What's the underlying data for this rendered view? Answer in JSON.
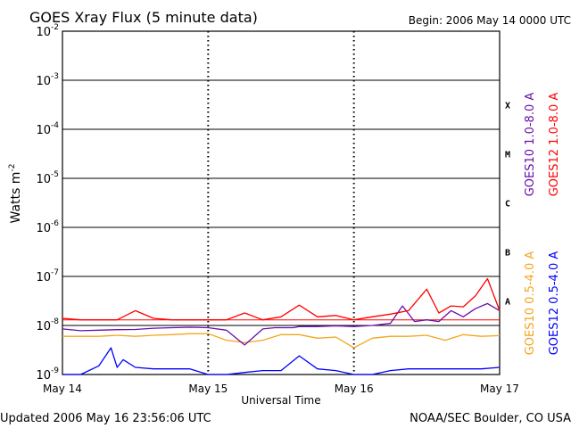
{
  "header": {
    "title": "GOES Xray Flux (5 minute data)",
    "begin": "Begin:  2006 May 14 0000 UTC"
  },
  "footer": {
    "updated": "Updated 2006 May 16 23:56:06 UTC",
    "credit": "NOAA/SEC Boulder, CO USA"
  },
  "chart_data": {
    "type": "line",
    "title": "GOES Xray Flux (5 minute data)",
    "xlabel": "Universal Time",
    "ylabel": "Watts m",
    "ylabel_superscript": "-2",
    "yscale": "log",
    "ylim": [
      1e-09,
      0.01
    ],
    "xlim": [
      0,
      72
    ],
    "x_unit": "hours since 2006 May 14 0000 UTC",
    "x_ticks": [
      {
        "x": 0,
        "label": "May 14"
      },
      {
        "x": 24,
        "label": "May 15"
      },
      {
        "x": 48,
        "label": "May 16"
      },
      {
        "x": 72,
        "label": "May 17"
      }
    ],
    "y_ticks": [
      {
        "exp": -2,
        "base": "10",
        "sup": "-2"
      },
      {
        "exp": -3,
        "base": "10",
        "sup": "-3"
      },
      {
        "exp": -4,
        "base": "10",
        "sup": "-4"
      },
      {
        "exp": -5,
        "base": "10",
        "sup": "-5"
      },
      {
        "exp": -6,
        "base": "10",
        "sup": "-6"
      },
      {
        "exp": -7,
        "base": "10",
        "sup": "-7"
      },
      {
        "exp": -8,
        "base": "10",
        "sup": "-8"
      },
      {
        "exp": -9,
        "base": "10",
        "sup": "-9"
      }
    ],
    "flare_classes": [
      {
        "label": "X",
        "exp": -3.5
      },
      {
        "label": "M",
        "exp": -4.5
      },
      {
        "label": "C",
        "exp": -5.5
      },
      {
        "label": "B",
        "exp": -6.5
      },
      {
        "label": "A",
        "exp": -7.5
      }
    ],
    "grid": true,
    "legend": "right",
    "colors": {
      "goes10_long": "#6a0dad",
      "goes12_long": "#ff0000",
      "goes10_short": "#f4a51c",
      "goes12_short": "#0000ff",
      "reference_line": "#ff0000"
    },
    "reference_line": 1.3e-08,
    "series": [
      {
        "name": "GOES10 1.0-8.0 A",
        "color": "#6a0dad",
        "x": [
          0,
          3,
          6,
          9,
          12,
          15,
          18,
          21,
          24,
          27,
          30,
          33,
          35,
          36,
          38,
          39,
          42,
          45,
          48,
          51,
          54,
          56,
          58,
          60,
          62,
          64,
          66,
          68,
          70,
          72
        ],
        "y": [
          8.5e-09,
          7.8e-09,
          8e-09,
          8.2e-09,
          8.3e-09,
          8.8e-09,
          9e-09,
          9.2e-09,
          9e-09,
          8e-09,
          4e-09,
          8.5e-09,
          9e-09,
          9e-09,
          9e-09,
          9.5e-09,
          9.5e-09,
          9.8e-09,
          9.5e-09,
          1e-08,
          1.1e-08,
          2.5e-08,
          1.2e-08,
          1.3e-08,
          1.2e-08,
          2e-08,
          1.5e-08,
          2.2e-08,
          2.8e-08,
          2e-08
        ]
      },
      {
        "name": "GOES12 1.0-8.0 A",
        "color": "#ff0000",
        "x": [
          0,
          3,
          6,
          9,
          12,
          15,
          18,
          21,
          24,
          27,
          30,
          33,
          36,
          39,
          42,
          45,
          48,
          51,
          54,
          57,
          60,
          62,
          64,
          66,
          68,
          70,
          72
        ],
        "y": [
          1.4e-08,
          1.3e-08,
          1.3e-08,
          1.3e-08,
          2e-08,
          1.4e-08,
          1.3e-08,
          1.3e-08,
          1.3e-08,
          1.3e-08,
          1.8e-08,
          1.3e-08,
          1.5e-08,
          2.6e-08,
          1.5e-08,
          1.6e-08,
          1.3e-08,
          1.5e-08,
          1.7e-08,
          2e-08,
          5.5e-08,
          1.8e-08,
          2.5e-08,
          2.4e-08,
          4e-08,
          9e-08,
          2e-08
        ]
      },
      {
        "name": "GOES10 0.5-4.0 A",
        "color": "#f4a51c",
        "x": [
          0,
          3,
          6,
          9,
          12,
          15,
          18,
          21,
          24,
          27,
          30,
          33,
          36,
          39,
          42,
          45,
          48,
          51,
          54,
          57,
          60,
          63,
          66,
          69,
          72
        ],
        "y": [
          6e-09,
          6e-09,
          6e-09,
          6.3e-09,
          6e-09,
          6.3e-09,
          6.5e-09,
          6.8e-09,
          6.8e-09,
          5e-09,
          4.5e-09,
          5e-09,
          6.5e-09,
          6.5e-09,
          5.5e-09,
          5.8e-09,
          3.5e-09,
          5.5e-09,
          6e-09,
          6e-09,
          6.3e-09,
          5e-09,
          6.5e-09,
          6e-09,
          6.2e-09
        ]
      },
      {
        "name": "GOES12 0.5-4.0 A",
        "color": "#0000ff",
        "x": [
          0,
          3,
          6,
          8,
          9,
          10,
          12,
          15,
          18,
          21,
          24,
          27,
          30,
          33,
          36,
          39,
          42,
          45,
          48,
          51,
          54,
          57,
          60,
          63,
          66,
          69,
          72
        ],
        "y": [
          1e-09,
          1e-09,
          1.5e-09,
          3.5e-09,
          1.4e-09,
          2e-09,
          1.4e-09,
          1.3e-09,
          1.3e-09,
          1.3e-09,
          1e-09,
          1e-09,
          1.1e-09,
          1.2e-09,
          1.2e-09,
          2.4e-09,
          1.3e-09,
          1.2e-09,
          1e-09,
          1e-09,
          1.2e-09,
          1.3e-09,
          1.3e-09,
          1.3e-09,
          1.3e-09,
          1.3e-09,
          1.4e-09
        ]
      }
    ]
  }
}
